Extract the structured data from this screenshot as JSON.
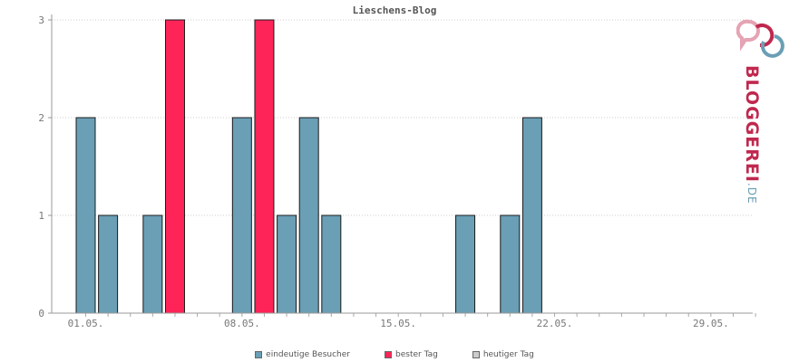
{
  "chart_data": {
    "type": "bar",
    "title": "Lieschens-Blog",
    "ylim": [
      0,
      3
    ],
    "y_ticks": [
      "0",
      "1",
      "2",
      "3"
    ],
    "x_tick_labels": [
      "01.05.",
      "08.05.",
      "15.05.",
      "22.05.",
      "29.05."
    ],
    "x_tick_days": [
      1,
      8,
      15,
      22,
      29
    ],
    "days": [
      1,
      2,
      3,
      4,
      5,
      6,
      7,
      8,
      9,
      10,
      11,
      12,
      13,
      14,
      15,
      16,
      17,
      18,
      19,
      20,
      21,
      22,
      23,
      24,
      25,
      26,
      27,
      28,
      29,
      30,
      31
    ],
    "series": [
      {
        "name": "eindeutige Besucher",
        "color": "#6a9fb5",
        "values": [
          2,
          1,
          0,
          1,
          0,
          0,
          0,
          2,
          0,
          1,
          2,
          1,
          0,
          0,
          0,
          0,
          0,
          1,
          0,
          1,
          2,
          0,
          0,
          0,
          0,
          0,
          0,
          0,
          0,
          0,
          0
        ]
      },
      {
        "name": "bester Tag",
        "color": "#ff2458",
        "values": [
          0,
          0,
          0,
          0,
          3,
          0,
          0,
          0,
          3,
          0,
          0,
          0,
          0,
          0,
          0,
          0,
          0,
          0,
          0,
          0,
          0,
          0,
          0,
          0,
          0,
          0,
          0,
          0,
          0,
          0,
          0
        ]
      },
      {
        "name": "heutiger Tag",
        "color": "#cccccc",
        "values": [
          0,
          0,
          0,
          0,
          0,
          0,
          0,
          0,
          0,
          0,
          0,
          0,
          0,
          0,
          0,
          0,
          0,
          0,
          0,
          0,
          0,
          0,
          0,
          0,
          0,
          0,
          0,
          0,
          0,
          0,
          0
        ]
      }
    ],
    "grid": true,
    "legend_position": "bottom"
  },
  "brand": {
    "name": "BLOGGEREI",
    "tld": ".DE"
  }
}
